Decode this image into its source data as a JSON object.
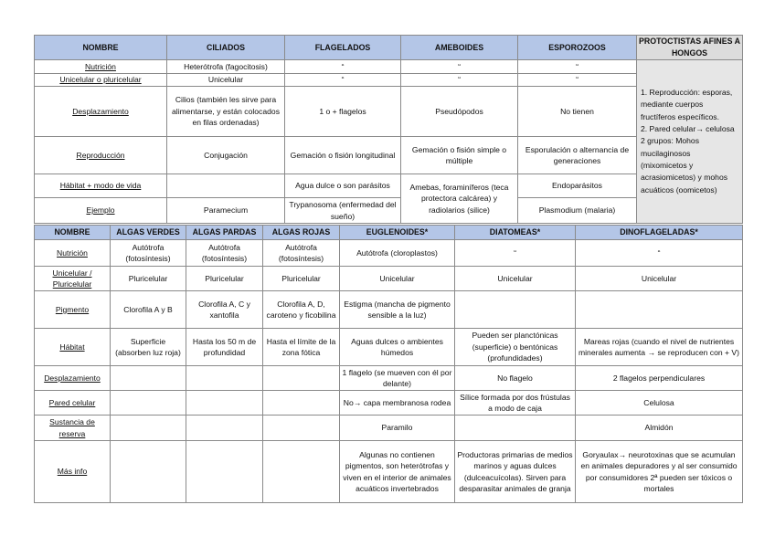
{
  "table1": {
    "headers": [
      "NOMBRE",
      "CILIADOS",
      "FLAGELADOS",
      "AMEBOIDES",
      "ESPOROZOOS",
      "PROTOCTISTAS AFINES A HONGOS"
    ],
    "rows": [
      {
        "label": "Nutrición",
        "cells": [
          "Heterótrofa (fagocitosis)",
          "“",
          "“",
          "“"
        ]
      },
      {
        "label": "Unicelular o pluricelular",
        "cells": [
          "Unicelular",
          "“",
          "“",
          "“"
        ]
      },
      {
        "label": "Desplazamiento",
        "cells": [
          "Cilios (también les sirve para alimentarse, y están colocados en filas ordenadas)",
          "1 o + flagelos",
          "Pseudópodos",
          "No tienen"
        ]
      },
      {
        "label": "Reproducción",
        "cells": [
          "Conjugación",
          "Gemación o fisión longitudinal",
          "Gemación o fisión simple o múltiple",
          "Esporulación o alternancia de generaciones"
        ]
      },
      {
        "label": "Hábitat + modo de vida",
        "cells": [
          "",
          "Agua dulce o son parásitos",
          "Amebas, foraminíferos (teca protectora calcárea) y radiolarios (silice)",
          "Endoparásitos"
        ]
      },
      {
        "label": "Ejemplo",
        "cells": [
          "Paramecium",
          "Trypanosoma (enfermedad del sueño)",
          null,
          "Plasmodium (malaria)"
        ]
      }
    ],
    "side_note": "1. Reproducción: esporas, mediante cuerpos fructíferos específicos.\n2. Pared celular→ celulosa\n2 grupos: Mohos mucilaginosos (mixomicetos y acrasiomicetos) y mohos acuáticos (oomicetos)"
  },
  "table2": {
    "headers": [
      "NOMBRE",
      "ALGAS VERDES",
      "ALGAS PARDAS",
      "ALGAS ROJAS",
      "EUGLENOIDES*",
      "DIATOMEAS*",
      "DINOFLAGELADAS*"
    ],
    "rows": [
      {
        "label": "Nutrición",
        "cells": [
          "Autótrofa (fotosíntesis)",
          "Autótrofa (fotosíntesis)",
          "Autótrofa (fotosíntesis)",
          "Autótrofa (cloroplastos)",
          "“",
          "“"
        ]
      },
      {
        "label": "Unicelular / Pluricelular",
        "cells": [
          "Pluricelular",
          "Pluricelular",
          "Pluricelular",
          "Unicelular",
          "Unicelular",
          "Unicelular"
        ]
      },
      {
        "label": "Pigmento",
        "cells": [
          "Clorofila A y B",
          "Clorofila A, C y xantofila",
          "Clorofila A, D, caroteno y ficobilina",
          "Estigma (mancha de pigmento sensible a la luz)",
          "",
          ""
        ]
      },
      {
        "label": "Hábitat",
        "cells": [
          "Superficie (absorben luz roja)",
          "Hasta los 50 m de profundidad",
          "Hasta el límite de la zona fótica",
          "Aguas dulces o ambientes húmedos",
          "Pueden ser planctónicas (superficie) o bentónicas (profundidades)",
          "Mareas rojas (cuando el nivel de nutrientes minerales aumenta → se reproducen con + V)"
        ]
      },
      {
        "label": "Desplazamiento",
        "cells": [
          "",
          "",
          "",
          "1 flagelo (se mueven con él por delante)",
          "No flagelo",
          "2 flagelos perpendiculares"
        ]
      },
      {
        "label": "Pared celular",
        "cells": [
          "",
          "",
          "",
          "No→ capa membranosa rodea",
          "Sílice formada por dos frústulas a modo de caja",
          "Celulosa"
        ]
      },
      {
        "label": "Sustancia de reserva",
        "cells": [
          "",
          "",
          "",
          "Paramilo",
          "",
          "Almidón"
        ]
      },
      {
        "label": "Más info",
        "cells": [
          "",
          "",
          "",
          "Algunas no contienen pigmentos, son heterótrofas y viven en el interior de animales acuáticos invertebrados",
          "Productoras primarias de medios marinos y aguas dulces (dulceacuícolas). Sirven para desparasitar animales de granja",
          "Goryaulax→ neurotoxinas que se acumulan en animales depuradores y al ser consumido por consumidores 2ª pueden ser tóxicos o mortales"
        ]
      }
    ]
  },
  "colors": {
    "header": "#b4c6e7",
    "side_column": "#e6e6e6",
    "border": "#8a8a8a"
  }
}
